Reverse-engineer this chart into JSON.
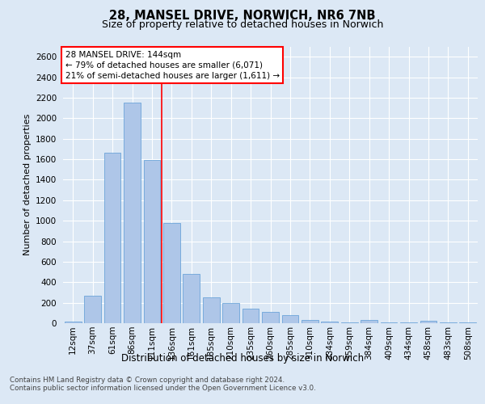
{
  "title_line1": "28, MANSEL DRIVE, NORWICH, NR6 7NB",
  "title_line2": "Size of property relative to detached houses in Norwich",
  "xlabel": "Distribution of detached houses by size in Norwich",
  "ylabel": "Number of detached properties",
  "categories": [
    "12sqm",
    "37sqm",
    "61sqm",
    "86sqm",
    "111sqm",
    "136sqm",
    "161sqm",
    "185sqm",
    "210sqm",
    "235sqm",
    "260sqm",
    "285sqm",
    "310sqm",
    "334sqm",
    "359sqm",
    "384sqm",
    "409sqm",
    "434sqm",
    "458sqm",
    "483sqm",
    "508sqm"
  ],
  "values": [
    15,
    270,
    1660,
    2150,
    1590,
    980,
    480,
    250,
    200,
    145,
    110,
    75,
    30,
    15,
    10,
    30,
    5,
    5,
    20,
    5,
    10
  ],
  "bar_color": "#aec6e8",
  "bar_edge_color": "#5b9bd5",
  "annotation_line1": "28 MANSEL DRIVE: 144sqm",
  "annotation_line2": "← 79% of detached houses are smaller (6,071)",
  "annotation_line3": "21% of semi-detached houses are larger (1,611) →",
  "ylim": [
    0,
    2700
  ],
  "yticks": [
    0,
    200,
    400,
    600,
    800,
    1000,
    1200,
    1400,
    1600,
    1800,
    2000,
    2200,
    2400,
    2600
  ],
  "bg_color": "#dce8f5",
  "plot_bg_color": "#dce8f5",
  "footnote1": "Contains HM Land Registry data © Crown copyright and database right 2024.",
  "footnote2": "Contains public sector information licensed under the Open Government Licence v3.0.",
  "red_line_x": 4.5
}
